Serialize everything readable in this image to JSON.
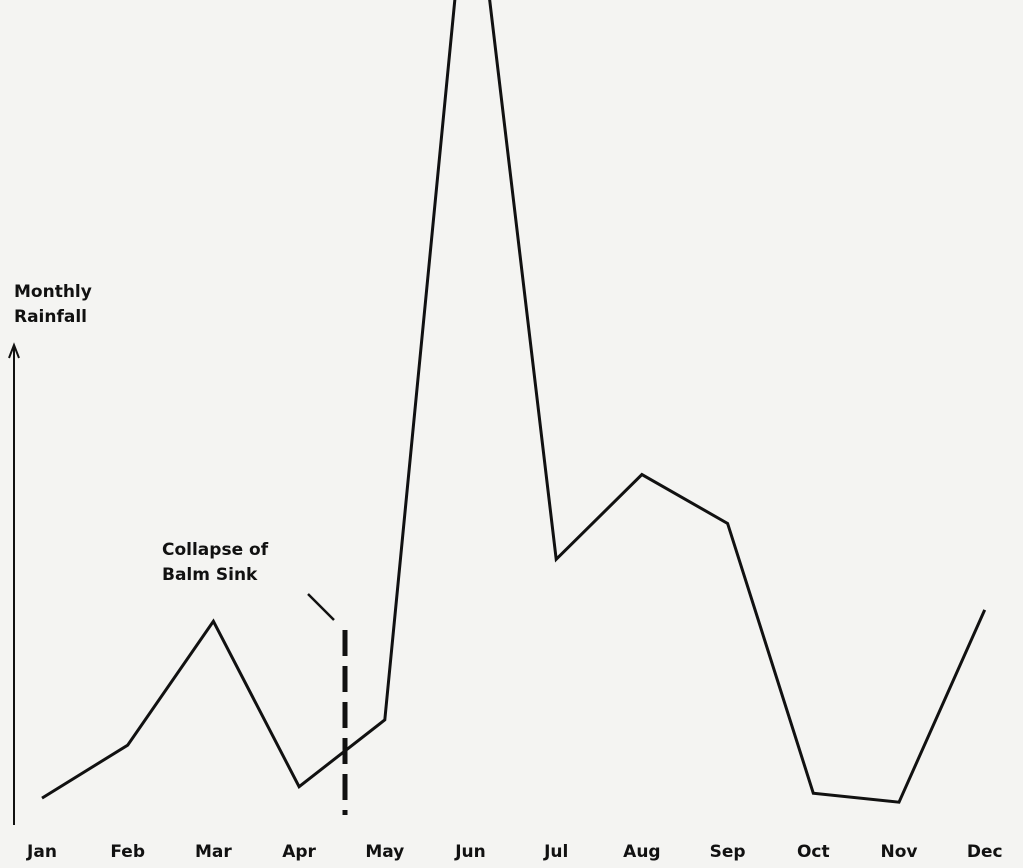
{
  "chart_data": {
    "type": "line",
    "y_label": [
      "Monthly",
      "Rainfall"
    ],
    "annotation": [
      "Collapse of",
      "Balm Sink"
    ],
    "categories": [
      "Jan",
      "Feb",
      "Mar",
      "Apr",
      "May",
      "Jun",
      "Jul",
      "Aug",
      "Sep",
      "Oct",
      "Nov",
      "Dec"
    ],
    "series": [
      {
        "name": "Monthly Rainfall",
        "color": "#111111",
        "values": [
          3.3,
          9.8,
          25,
          4.7,
          12.9,
          121,
          32.6,
          43,
          37,
          3.9,
          2.8,
          26.4
        ]
      }
    ],
    "ylim": [
      0,
      100
    ],
    "grid": false
  }
}
